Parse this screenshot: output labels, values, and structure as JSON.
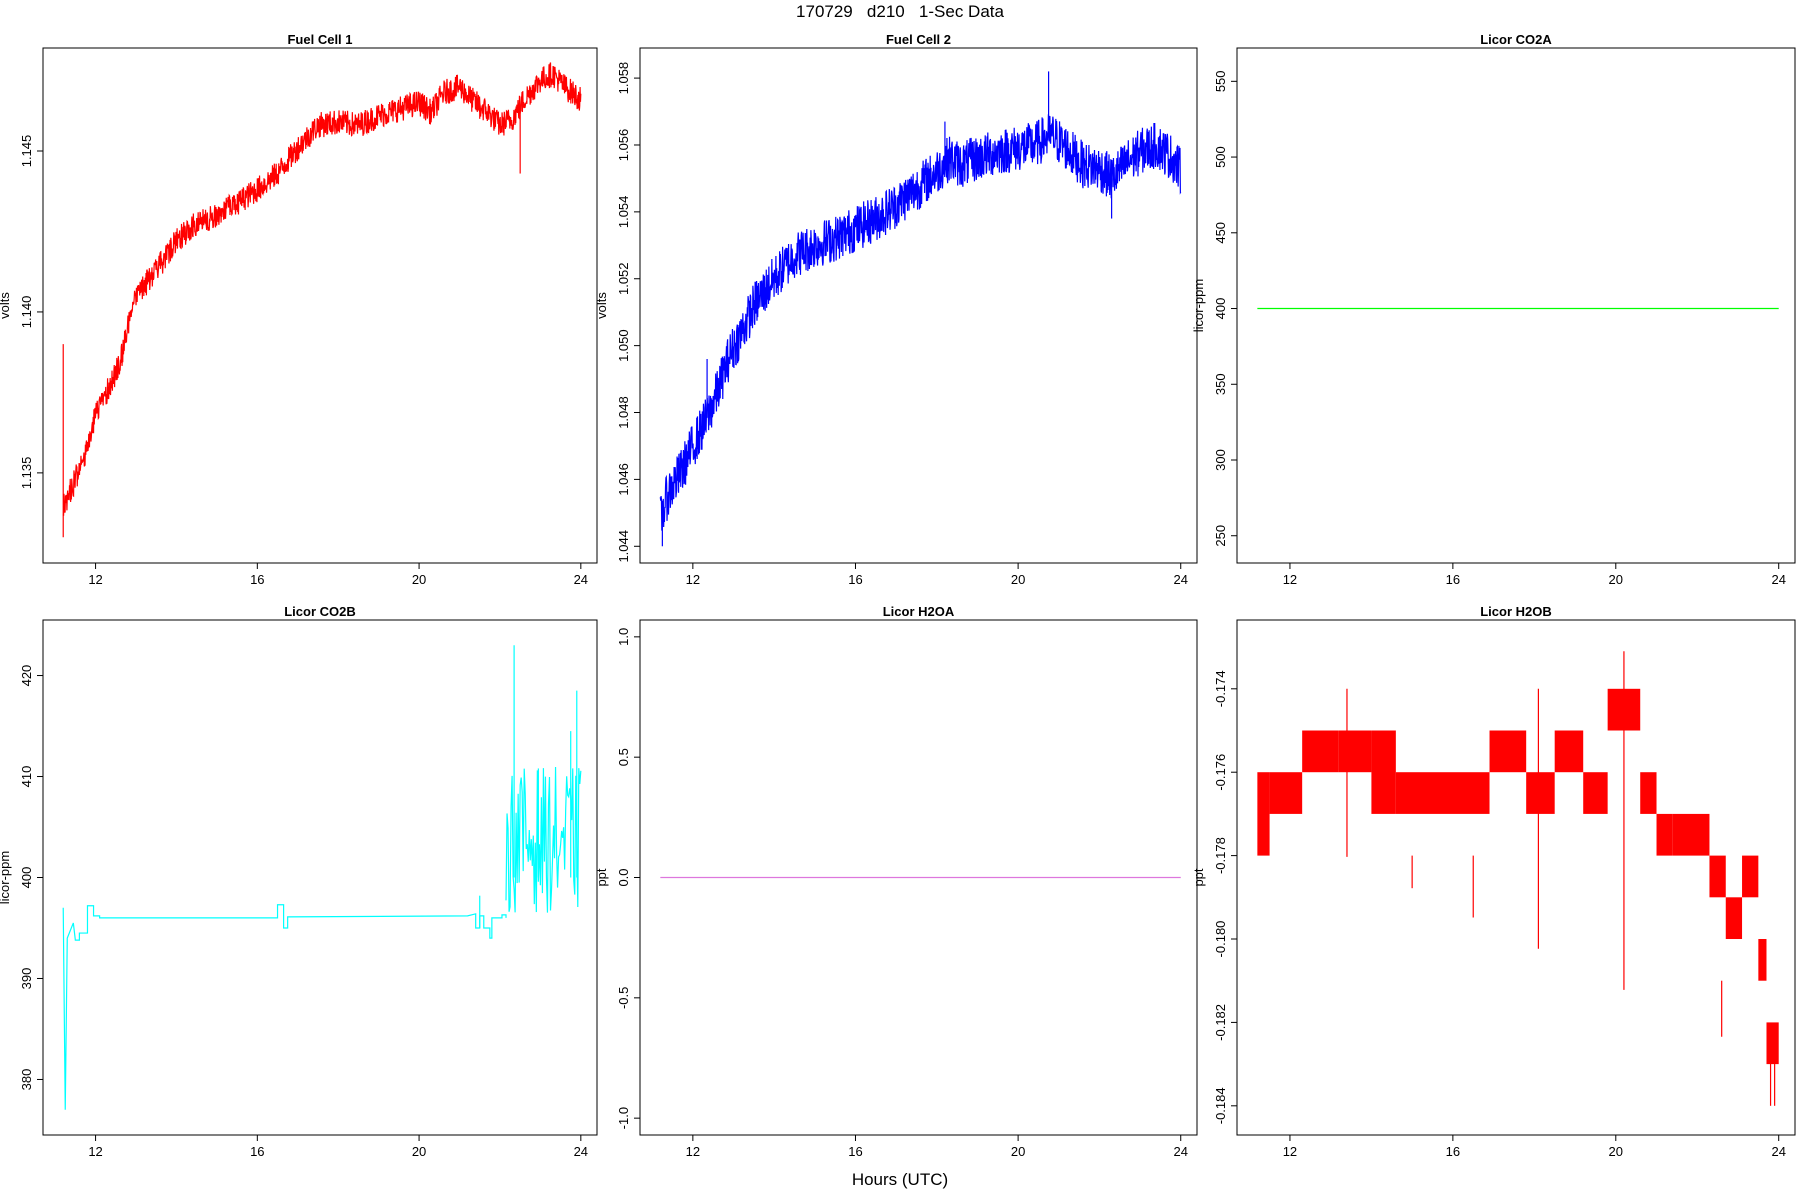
{
  "figure": {
    "title": "170729   d210   1-Sec Data",
    "xlabel": "Hours (UTC)"
  },
  "chart_data": [
    {
      "type": "line",
      "title": "Fuel Cell 1",
      "ylabel": "volts",
      "color": "#ff0000",
      "xlim": [
        10.7,
        24.4
      ],
      "ylim": [
        1.1322,
        1.1482
      ],
      "x_ticks": [
        12,
        16,
        20,
        24
      ],
      "y_ticks": [
        1.135,
        1.14,
        1.145
      ],
      "y_tick_labels": [
        "1.135",
        "1.140",
        "1.145"
      ],
      "noise": 0.0004,
      "series": [
        {
          "x": [
            11.2,
            11.3,
            11.5,
            11.8,
            12.0,
            12.3,
            12.6,
            12.8,
            13.0,
            13.5,
            14.0,
            14.5,
            15.0,
            15.5,
            16.0,
            16.5,
            17.0,
            17.5,
            18.0,
            18.5,
            19.0,
            19.5,
            20.0,
            20.3,
            20.6,
            21.0,
            21.3,
            21.7,
            22.0,
            22.3,
            22.6,
            23.0,
            23.3,
            23.6,
            24.0
          ],
          "y": [
            1.134,
            1.1342,
            1.1348,
            1.1358,
            1.1368,
            1.1376,
            1.1384,
            1.1396,
            1.1405,
            1.1413,
            1.1422,
            1.1428,
            1.143,
            1.1434,
            1.1438,
            1.1443,
            1.1451,
            1.1458,
            1.1459,
            1.1458,
            1.1461,
            1.1463,
            1.1465,
            1.1462,
            1.1468,
            1.147,
            1.1466,
            1.1462,
            1.1458,
            1.146,
            1.1466,
            1.1472,
            1.1474,
            1.147,
            1.1466
          ]
        }
      ],
      "spikes": [
        {
          "x": 11.2,
          "y": 1.139
        },
        {
          "x": 11.2,
          "y": 1.133
        },
        {
          "x": 22.5,
          "y": 1.1443
        },
        {
          "x": 21.5,
          "y": 1.146
        }
      ]
    },
    {
      "type": "line",
      "title": "Fuel Cell 2",
      "ylabel": "volts",
      "color": "#0000ff",
      "xlim": [
        10.7,
        24.4
      ],
      "ylim": [
        1.0435,
        1.0589
      ],
      "x_ticks": [
        12,
        16,
        20,
        24
      ],
      "y_ticks": [
        1.044,
        1.046,
        1.048,
        1.05,
        1.052,
        1.054,
        1.056,
        1.058
      ],
      "y_tick_labels": [
        "1.044",
        "1.046",
        "1.048",
        "1.050",
        "1.052",
        "1.054",
        "1.056",
        "1.058"
      ],
      "noise": 0.0007,
      "series": [
        {
          "x": [
            11.2,
            11.4,
            11.7,
            12.0,
            12.3,
            12.6,
            12.9,
            13.2,
            13.5,
            14.0,
            14.5,
            15.0,
            15.5,
            16.0,
            16.5,
            17.0,
            17.5,
            18.0,
            18.3,
            18.6,
            19.0,
            19.5,
            20.0,
            20.4,
            20.8,
            21.2,
            21.6,
            22.0,
            22.3,
            22.7,
            23.0,
            23.4,
            23.8,
            24.0
          ],
          "y": [
            1.0448,
            1.0456,
            1.0462,
            1.047,
            1.0477,
            1.0486,
            1.0497,
            1.0504,
            1.0512,
            1.052,
            1.0527,
            1.053,
            1.0532,
            1.0535,
            1.0538,
            1.0542,
            1.0547,
            1.0552,
            1.0556,
            1.0554,
            1.0556,
            1.0558,
            1.0559,
            1.056,
            1.0563,
            1.0559,
            1.0554,
            1.0553,
            1.055,
            1.0555,
            1.0558,
            1.056,
            1.0556,
            1.0552
          ]
        }
      ],
      "spikes": [
        {
          "x": 20.75,
          "y": 1.0582
        },
        {
          "x": 18.2,
          "y": 1.0567
        },
        {
          "x": 12.35,
          "y": 1.0496
        },
        {
          "x": 11.25,
          "y": 1.044
        },
        {
          "x": 22.3,
          "y": 1.0538
        }
      ]
    },
    {
      "type": "line",
      "title": "Licor CO2A",
      "ylabel": "licor-ppm",
      "color": "#00ff00",
      "xlim": [
        10.7,
        24.4
      ],
      "ylim": [
        232,
        572
      ],
      "x_ticks": [
        12,
        16,
        20,
        24
      ],
      "y_ticks": [
        250,
        300,
        350,
        400,
        450,
        500,
        550
      ],
      "y_tick_labels": [
        "250",
        "300",
        "350",
        "400",
        "450",
        "500",
        "550"
      ],
      "noise": 0,
      "series": [
        {
          "x": [
            11.2,
            24.0
          ],
          "y": [
            400,
            400
          ]
        }
      ],
      "spikes": []
    },
    {
      "type": "line",
      "title": "Licor CO2B",
      "ylabel": "licor-ppm",
      "color": "#00ffff",
      "xlim": [
        10.7,
        24.4
      ],
      "ylim": [
        374.5,
        425.5
      ],
      "x_ticks": [
        12,
        16,
        20,
        24
      ],
      "y_ticks": [
        380,
        390,
        400,
        410,
        420
      ],
      "y_tick_labels": [
        "380",
        "390",
        "400",
        "410",
        "420"
      ],
      "noise": 0,
      "series": [
        {
          "x": [
            11.2,
            11.25,
            11.3,
            11.4,
            11.45,
            11.5,
            11.6,
            11.6,
            11.8,
            11.8,
            11.95,
            11.95,
            12.1,
            12.1,
            16.5,
            16.5,
            16.65,
            16.65,
            16.75,
            16.75,
            21.2,
            21.4,
            21.4,
            21.5,
            21.5,
            21.6,
            21.6,
            21.75,
            21.75,
            21.8,
            21.8,
            21.9,
            21.9,
            22.05,
            22.05,
            22.15,
            22.15
          ],
          "y": [
            397,
            377,
            394,
            395,
            395.5,
            393.8,
            393.8,
            394.5,
            394.5,
            397.2,
            397.2,
            396.2,
            396.2,
            396.0,
            396.0,
            397.3,
            397.3,
            395.0,
            395.0,
            396.1,
            396.2,
            396.4,
            395.0,
            395.0,
            396.2,
            396.2,
            395.0,
            395.0,
            394.0,
            394.0,
            396.0,
            396.0,
            396.0,
            396.0,
            396.3,
            396.3,
            396.0
          ]
        }
      ],
      "burst": {
        "x_start": 22.15,
        "x_end": 24.0,
        "y_min": 396.5,
        "y_max": 411.0,
        "step": 0.025
      },
      "spikes": [
        {
          "x": 21.5,
          "y": 398.2
        },
        {
          "x": 22.35,
          "y": 423.0
        },
        {
          "x": 23.9,
          "y": 418.5
        },
        {
          "x": 23.75,
          "y": 414.5
        },
        {
          "x": 22.95,
          "y": 410.8
        }
      ]
    },
    {
      "type": "line",
      "title": "Licor H2OA",
      "ylabel": "ppt",
      "color": "#dd77dd",
      "xlim": [
        10.7,
        24.4
      ],
      "ylim": [
        -1.07,
        1.07
      ],
      "x_ticks": [
        12,
        16,
        20,
        24
      ],
      "y_ticks": [
        -1.0,
        -0.5,
        0.0,
        0.5,
        1.0
      ],
      "y_tick_labels": [
        "-1.0",
        "-0.5",
        "0.0",
        "0.5",
        "1.0"
      ],
      "noise": 0,
      "series": [
        {
          "x": [
            11.2,
            24.0
          ],
          "y": [
            0,
            0
          ]
        }
      ],
      "spikes": []
    },
    {
      "type": "line",
      "title": "Licor H2OB",
      "ylabel": "ppt",
      "color": "#ff0000",
      "xlim": [
        10.7,
        24.4
      ],
      "ylim": [
        -0.1847,
        -0.17235
      ],
      "x_ticks": [
        12,
        16,
        20,
        24
      ],
      "y_ticks": [
        -0.184,
        -0.182,
        -0.18,
        -0.178,
        -0.176,
        -0.174
      ],
      "y_tick_labels": [
        "-0.184",
        "-0.182",
        "-0.180",
        "-0.178",
        "-0.176",
        "-0.174"
      ],
      "noise": 0,
      "series": [
        {
          "x": [
            11.2,
            24.0
          ],
          "y": [
            -0.177,
            -0.183
          ]
        }
      ],
      "bands": [
        {
          "x0": 11.2,
          "x1": 11.5,
          "y0": -0.178,
          "y1": -0.176
        },
        {
          "x0": 11.5,
          "x1": 12.3,
          "y0": -0.177,
          "y1": -0.176
        },
        {
          "x0": 12.3,
          "x1": 13.2,
          "y0": -0.176,
          "y1": -0.175
        },
        {
          "x0": 13.2,
          "x1": 14.0,
          "y0": -0.176,
          "y1": -0.175
        },
        {
          "x0": 14.0,
          "x1": 14.6,
          "y0": -0.177,
          "y1": -0.175
        },
        {
          "x0": 14.6,
          "x1": 16.9,
          "y0": -0.177,
          "y1": -0.176
        },
        {
          "x0": 16.9,
          "x1": 17.8,
          "y0": -0.176,
          "y1": -0.175
        },
        {
          "x0": 17.8,
          "x1": 18.5,
          "y0": -0.177,
          "y1": -0.176
        },
        {
          "x0": 18.5,
          "x1": 19.2,
          "y0": -0.176,
          "y1": -0.175
        },
        {
          "x0": 19.2,
          "x1": 19.8,
          "y0": -0.177,
          "y1": -0.176
        },
        {
          "x0": 19.8,
          "x1": 20.6,
          "y0": -0.175,
          "y1": -0.174
        },
        {
          "x0": 20.6,
          "x1": 21.0,
          "y0": -0.177,
          "y1": -0.176
        },
        {
          "x0": 21.0,
          "x1": 21.4,
          "y0": -0.178,
          "y1": -0.177
        },
        {
          "x0": 21.4,
          "x1": 22.3,
          "y0": -0.178,
          "y1": -0.177
        },
        {
          "x0": 22.3,
          "x1": 22.7,
          "y0": -0.179,
          "y1": -0.178
        },
        {
          "x0": 22.7,
          "x1": 23.1,
          "y0": -0.18,
          "y1": -0.179
        },
        {
          "x0": 23.1,
          "x1": 23.5,
          "y0": -0.179,
          "y1": -0.178
        },
        {
          "x0": 23.5,
          "x1": 23.7,
          "y0": -0.181,
          "y1": -0.18
        },
        {
          "x0": 23.7,
          "x1": 24.0,
          "y0": -0.183,
          "y1": -0.182
        }
      ],
      "spikes": [
        {
          "x": 20.2,
          "y": -0.1731
        },
        {
          "x": 13.4,
          "y": -0.174
        },
        {
          "x": 18.1,
          "y": -0.174
        },
        {
          "x": 23.8,
          "y": -0.184
        },
        {
          "x": 23.9,
          "y": -0.184
        },
        {
          "x": 22.6,
          "y": -0.181
        },
        {
          "x": 15.0,
          "y": -0.178
        },
        {
          "x": 16.5,
          "y": -0.178
        }
      ]
    }
  ]
}
